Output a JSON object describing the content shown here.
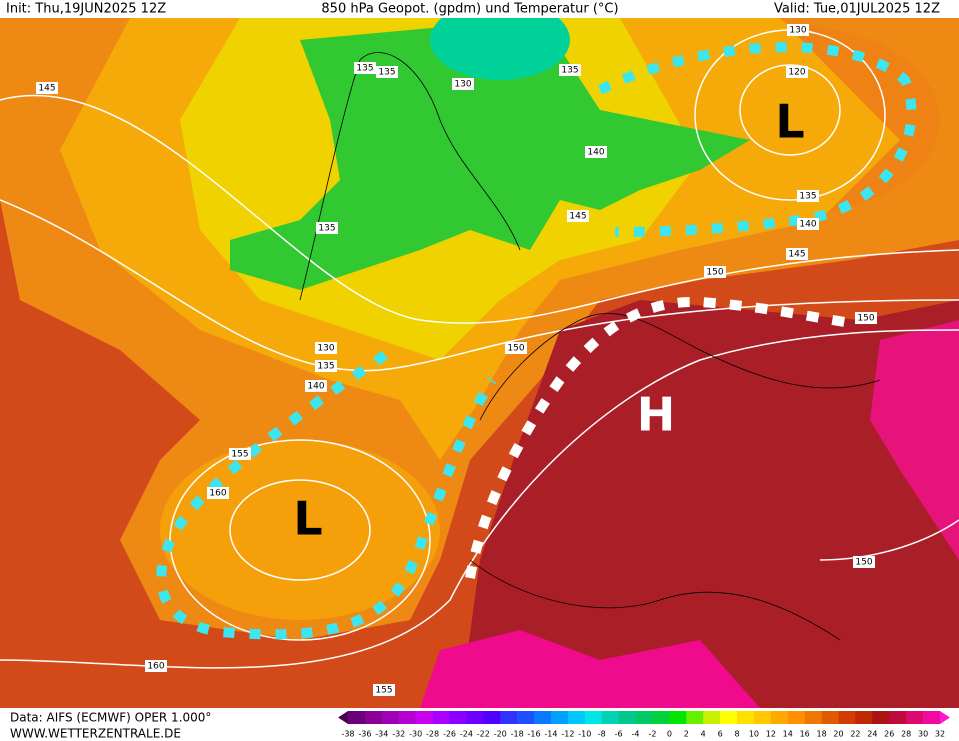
{
  "header": {
    "init": "Init: Thu,19JUN2025 12Z",
    "title": "850 hPa Geopot. (gpdm) und Temperatur (°C)",
    "valid": "Valid: Tue,01JUL2025 12Z"
  },
  "map": {
    "contour_labels": [
      "130",
      "120",
      "135",
      "135",
      "130",
      "135",
      "145",
      "140",
      "145",
      "135",
      "135",
      "140",
      "145",
      "150",
      "150",
      "130",
      "135",
      "140",
      "150",
      "155",
      "160",
      "150",
      "160",
      "155"
    ],
    "centers": [
      "L",
      "L",
      "H"
    ]
  },
  "colorbar": {
    "labels": [
      -38,
      -36,
      -34,
      -32,
      -30,
      -28,
      -26,
      -24,
      -22,
      -20,
      -18,
      -16,
      -14,
      -12,
      -10,
      -8,
      -6,
      -4,
      -2,
      0,
      2,
      4,
      6,
      8,
      10,
      12,
      14,
      16,
      18,
      20,
      22,
      24,
      26,
      28,
      30,
      32
    ],
    "colors": [
      "#4b0050",
      "#6a007a",
      "#8a0096",
      "#a000b4",
      "#b400d2",
      "#c800f0",
      "#aa00ff",
      "#8c00ff",
      "#6e00ff",
      "#5000ff",
      "#3232ff",
      "#1e50ff",
      "#0a78ff",
      "#00a0ff",
      "#00c8ff",
      "#00e6e6",
      "#00d2b4",
      "#00c88c",
      "#00c864",
      "#00d23c",
      "#00e600",
      "#64f000",
      "#c8f000",
      "#ffff00",
      "#ffe100",
      "#ffc800",
      "#ffaa00",
      "#ff9100",
      "#f07800",
      "#e15a00",
      "#d23c00",
      "#be2800",
      "#aa1414",
      "#be0a3c",
      "#dc0a6e",
      "#f00aa0",
      "#ff14d2"
    ]
  },
  "footer": {
    "source": "Data: AIFS (ECMWF) OPER 1.000°",
    "website": "WWW.WETTERZENTRALE.DE"
  }
}
